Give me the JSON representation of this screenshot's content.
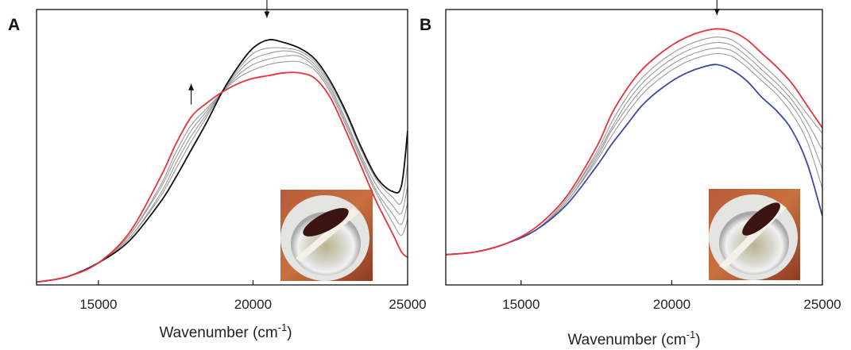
{
  "chart_data": [
    {
      "type": "line",
      "panel_label": "A",
      "xlabel": "Wavenumber (cm",
      "xlabel_sup": "-1",
      "xlabel_close": ")",
      "ylabel": "",
      "xlim": [
        13000,
        25000
      ],
      "ylim": [
        0,
        1.0
      ],
      "xticks": [
        15000,
        20000,
        25000
      ],
      "xtick_labels": [
        "15000",
        "20000",
        "25000"
      ],
      "y_ticks_shown": false,
      "annotations": [
        {
          "type": "arrow",
          "direction": "down",
          "x": 20450,
          "y": 0.97
        },
        {
          "type": "arrow",
          "direction": "up",
          "x": 18000,
          "y": 0.73
        }
      ],
      "inset_photo": true,
      "series": [
        {
          "color": "#111111",
          "x": [
            13000,
            14000,
            15000,
            16000,
            17000,
            17500,
            18000,
            18500,
            19000,
            19500,
            20000,
            20500,
            21000,
            21500,
            22000,
            22500,
            23000,
            23500,
            24000,
            24500,
            24800,
            25000
          ],
          "y": [
            0.01,
            0.03,
            0.08,
            0.16,
            0.3,
            0.39,
            0.49,
            0.59,
            0.7,
            0.79,
            0.86,
            0.89,
            0.88,
            0.86,
            0.82,
            0.74,
            0.63,
            0.5,
            0.39,
            0.34,
            0.36,
            0.56
          ]
        },
        {
          "color": "#9a9a9a",
          "x": [
            13000,
            14000,
            15000,
            16000,
            17000,
            17500,
            18000,
            18500,
            19000,
            19500,
            20000,
            20500,
            21000,
            21500,
            22000,
            22500,
            23000,
            23500,
            24000,
            24500,
            24800,
            25000
          ],
          "y": [
            0.01,
            0.03,
            0.08,
            0.17,
            0.32,
            0.42,
            0.52,
            0.61,
            0.7,
            0.78,
            0.84,
            0.86,
            0.86,
            0.85,
            0.81,
            0.73,
            0.62,
            0.49,
            0.38,
            0.32,
            0.3,
            0.44
          ]
        },
        {
          "color": "#9a9a9a",
          "x": [
            13000,
            14000,
            15000,
            16000,
            17000,
            17500,
            18000,
            18500,
            19000,
            19500,
            20000,
            20500,
            21000,
            21500,
            22000,
            22500,
            23000,
            23500,
            24000,
            24500,
            24800,
            25000
          ],
          "y": [
            0.01,
            0.03,
            0.08,
            0.17,
            0.33,
            0.44,
            0.54,
            0.62,
            0.7,
            0.77,
            0.82,
            0.84,
            0.85,
            0.84,
            0.8,
            0.72,
            0.6,
            0.47,
            0.36,
            0.29,
            0.26,
            0.36
          ]
        },
        {
          "color": "#9a9a9a",
          "x": [
            13000,
            14000,
            15000,
            16000,
            17000,
            17500,
            18000,
            18500,
            19000,
            19500,
            20000,
            20500,
            21000,
            21500,
            22000,
            22500,
            23000,
            23500,
            24000,
            24500,
            24800,
            25000
          ],
          "y": [
            0.01,
            0.03,
            0.08,
            0.18,
            0.35,
            0.46,
            0.56,
            0.63,
            0.7,
            0.76,
            0.8,
            0.82,
            0.83,
            0.83,
            0.79,
            0.71,
            0.59,
            0.46,
            0.34,
            0.26,
            0.22,
            0.3
          ]
        },
        {
          "color": "#9a9a9a",
          "x": [
            13000,
            14000,
            15000,
            16000,
            17000,
            17500,
            18000,
            18500,
            19000,
            19500,
            20000,
            20500,
            21000,
            21500,
            22000,
            22500,
            23000,
            23500,
            24000,
            24500,
            24800,
            25000
          ],
          "y": [
            0.01,
            0.03,
            0.08,
            0.18,
            0.36,
            0.48,
            0.58,
            0.64,
            0.7,
            0.75,
            0.78,
            0.8,
            0.81,
            0.81,
            0.78,
            0.7,
            0.58,
            0.45,
            0.33,
            0.23,
            0.18,
            0.24
          ]
        },
        {
          "color": "#e8323c",
          "x": [
            13000,
            14000,
            15000,
            16000,
            17000,
            17500,
            18000,
            18500,
            19000,
            19500,
            20000,
            20500,
            21000,
            21500,
            22000,
            22500,
            23000,
            23500,
            24000,
            24500,
            24800,
            25000
          ],
          "y": [
            0.01,
            0.03,
            0.08,
            0.19,
            0.39,
            0.51,
            0.61,
            0.66,
            0.7,
            0.73,
            0.75,
            0.76,
            0.77,
            0.77,
            0.75,
            0.68,
            0.56,
            0.43,
            0.3,
            0.19,
            0.12,
            0.1
          ]
        }
      ]
    },
    {
      "type": "line",
      "panel_label": "B",
      "xlabel": "Wavenumber (cm",
      "xlabel_sup": "-1",
      "xlabel_close": ")",
      "ylabel": "",
      "xlim": [
        12500,
        25000
      ],
      "ylim": [
        0,
        1.0
      ],
      "xticks": [
        15000,
        20000,
        25000
      ],
      "xtick_labels": [
        "15000",
        "20000",
        "25000"
      ],
      "y_ticks_shown": false,
      "annotations": [
        {
          "type": "arrow",
          "direction": "down",
          "x": 21500,
          "y": 0.98
        }
      ],
      "inset_photo": true,
      "series": [
        {
          "color": "#3a4aa0",
          "x": [
            12500,
            13500,
            14500,
            15500,
            16500,
            17500,
            18000,
            18500,
            19000,
            19500,
            20000,
            20500,
            21000,
            21500,
            22000,
            22500,
            23000,
            23500,
            24000,
            24500,
            25000
          ],
          "y": [
            0.11,
            0.12,
            0.15,
            0.2,
            0.29,
            0.43,
            0.51,
            0.58,
            0.65,
            0.7,
            0.74,
            0.77,
            0.79,
            0.8,
            0.78,
            0.74,
            0.68,
            0.63,
            0.56,
            0.44,
            0.25
          ]
        },
        {
          "color": "#9a9a9a",
          "x": [
            12500,
            13500,
            14500,
            15500,
            16500,
            17500,
            18000,
            18500,
            19000,
            19500,
            20000,
            20500,
            21000,
            21500,
            22000,
            22500,
            23000,
            23500,
            24000,
            24500,
            25000
          ],
          "y": [
            0.11,
            0.12,
            0.15,
            0.2,
            0.3,
            0.45,
            0.54,
            0.62,
            0.69,
            0.74,
            0.78,
            0.81,
            0.83,
            0.84,
            0.83,
            0.79,
            0.74,
            0.69,
            0.62,
            0.52,
            0.35
          ]
        },
        {
          "color": "#9a9a9a",
          "x": [
            12500,
            13500,
            14500,
            15500,
            16500,
            17500,
            18000,
            18500,
            19000,
            19500,
            20000,
            20500,
            21000,
            21500,
            22000,
            22500,
            23000,
            23500,
            24000,
            24500,
            25000
          ],
          "y": [
            0.11,
            0.12,
            0.15,
            0.2,
            0.3,
            0.46,
            0.56,
            0.64,
            0.71,
            0.76,
            0.8,
            0.83,
            0.85,
            0.86,
            0.85,
            0.81,
            0.76,
            0.71,
            0.65,
            0.56,
            0.42
          ]
        },
        {
          "color": "#9a9a9a",
          "x": [
            12500,
            13500,
            14500,
            15500,
            16500,
            17500,
            18000,
            18500,
            19000,
            19500,
            20000,
            20500,
            21000,
            21500,
            22000,
            22500,
            23000,
            23500,
            24000,
            24500,
            25000
          ],
          "y": [
            0.11,
            0.12,
            0.15,
            0.2,
            0.31,
            0.47,
            0.57,
            0.66,
            0.73,
            0.78,
            0.82,
            0.85,
            0.87,
            0.88,
            0.87,
            0.83,
            0.78,
            0.73,
            0.67,
            0.59,
            0.49
          ]
        },
        {
          "color": "#9a9a9a",
          "x": [
            12500,
            13500,
            14500,
            15500,
            16500,
            17500,
            18000,
            18500,
            19000,
            19500,
            20000,
            20500,
            21000,
            21500,
            22000,
            22500,
            23000,
            23500,
            24000,
            24500,
            25000
          ],
          "y": [
            0.11,
            0.12,
            0.15,
            0.2,
            0.31,
            0.48,
            0.59,
            0.68,
            0.75,
            0.8,
            0.84,
            0.87,
            0.89,
            0.9,
            0.89,
            0.85,
            0.8,
            0.75,
            0.69,
            0.62,
            0.55
          ]
        },
        {
          "color": "#e8323c",
          "x": [
            12500,
            13500,
            14500,
            15500,
            16500,
            17500,
            18000,
            18500,
            19000,
            19500,
            20000,
            20500,
            21000,
            21500,
            22000,
            22500,
            23000,
            23500,
            24000,
            24500,
            25000
          ],
          "y": [
            0.11,
            0.12,
            0.15,
            0.21,
            0.32,
            0.5,
            0.62,
            0.71,
            0.78,
            0.83,
            0.87,
            0.9,
            0.92,
            0.93,
            0.92,
            0.89,
            0.84,
            0.79,
            0.73,
            0.65,
            0.57
          ]
        }
      ]
    }
  ]
}
